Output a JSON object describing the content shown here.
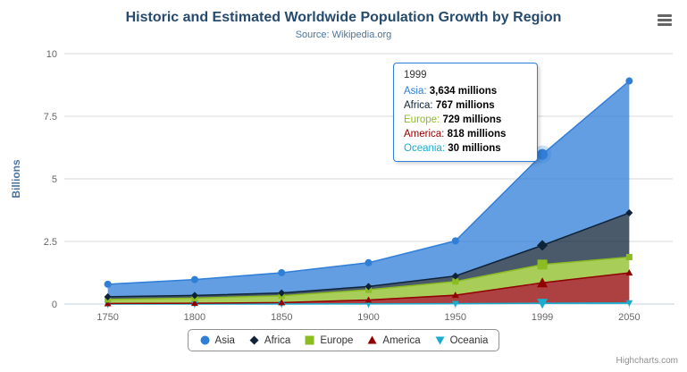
{
  "header": {
    "title": "Historic and Estimated Worldwide Population Growth by Region",
    "subtitle": "Source: Wikipedia.org"
  },
  "credits": "Highcharts.com",
  "chart_data": {
    "type": "area",
    "stacked": true,
    "title": "Historic and Estimated Worldwide Population Growth by Region",
    "subtitle": "Source: Wikipedia.org",
    "xlabel": "",
    "ylabel": "Billions",
    "ylim": [
      0,
      10
    ],
    "yticks": [
      0,
      2.5,
      5,
      7.5,
      10
    ],
    "grid": true,
    "legend_position": "bottom",
    "unit": "millions",
    "categories": [
      "1750",
      "1800",
      "1850",
      "1900",
      "1950",
      "1999",
      "2050"
    ],
    "series": [
      {
        "name": "Asia",
        "color": "#2f7ed8",
        "marker": "circle",
        "values_millions": [
          502,
          635,
          809,
          947,
          1402,
          3634,
          5268
        ]
      },
      {
        "name": "Africa",
        "color": "#0d233a",
        "marker": "diamond",
        "values_millions": [
          106,
          107,
          111,
          133,
          221,
          767,
          1766
        ]
      },
      {
        "name": "Europe",
        "color": "#8bbc21",
        "marker": "square",
        "values_millions": [
          163,
          203,
          276,
          408,
          547,
          729,
          628
        ]
      },
      {
        "name": "America",
        "color": "#910000",
        "marker": "triangle",
        "values_millions": [
          18,
          31,
          54,
          156,
          339,
          818,
          1201
        ]
      },
      {
        "name": "Oceania",
        "color": "#1aadce",
        "marker": "triangle-down",
        "values_millions": [
          2,
          2,
          2,
          6,
          13,
          30,
          46
        ]
      }
    ],
    "stack_order_bottom_to_top": [
      "Oceania",
      "America",
      "Europe",
      "Africa",
      "Asia"
    ]
  },
  "tooltip": {
    "header": "1999",
    "hover_category_index": 5,
    "border_color": "#2f7ed8",
    "rows": [
      {
        "name": "Asia",
        "value": "3,634 millions",
        "color": "#2f7ed8"
      },
      {
        "name": "Africa",
        "value": "767 millions",
        "color": "#0d233a"
      },
      {
        "name": "Europe",
        "value": "729 millions",
        "color": "#8bbc21"
      },
      {
        "name": "America",
        "value": "818 millions",
        "color": "#910000"
      },
      {
        "name": "Oceania",
        "value": "30 millions",
        "color": "#1aadce"
      }
    ]
  }
}
